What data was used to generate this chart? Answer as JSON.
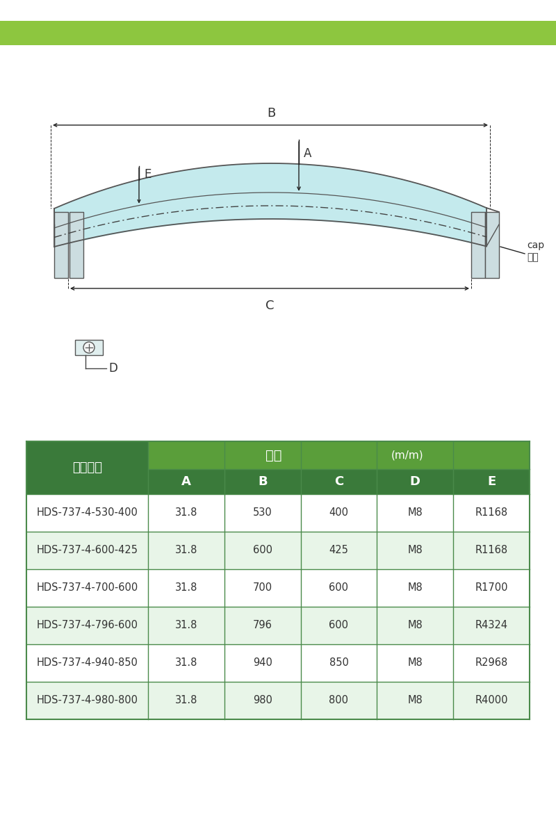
{
  "green_bar_color": "#8DC63F",
  "table_header_dark": "#3A7A3A",
  "table_header_light": "#5A9E3A",
  "table_row_light": "#E8F5E8",
  "table_row_white": "#FFFFFF",
  "table_border": "#4A8A4A",
  "text_white": "#FFFFFF",
  "text_dark": "#333333",
  "handle_fill": "#BEE8EC",
  "dim_line_color": "#222222",
  "col_headers": [
    "A",
    "B",
    "C",
    "D",
    "E"
  ],
  "row_header": "產品型號",
  "size_label": "尺寸",
  "unit_label": "(m/m)",
  "rows": [
    [
      "HDS-737-4-530-400",
      "31.8",
      "530",
      "400",
      "M8",
      "R1168"
    ],
    [
      "HDS-737-4-600-425",
      "31.8",
      "600",
      "425",
      "M8",
      "R1168"
    ],
    [
      "HDS-737-4-700-600",
      "31.8",
      "700",
      "600",
      "M8",
      "R1700"
    ],
    [
      "HDS-737-4-796-600",
      "31.8",
      "796",
      "600",
      "M8",
      "R4324"
    ],
    [
      "HDS-737-4-940-850",
      "31.8",
      "940",
      "850",
      "M8",
      "R2968"
    ],
    [
      "HDS-737-4-980-800",
      "31.8",
      "980",
      "800",
      "M8",
      "R4000"
    ]
  ],
  "cap_label": "cap",
  "cap_sub": "蓋子",
  "D_label": "D",
  "B_label": "B",
  "C_label": "C",
  "A_label": "A",
  "E_label": "E"
}
